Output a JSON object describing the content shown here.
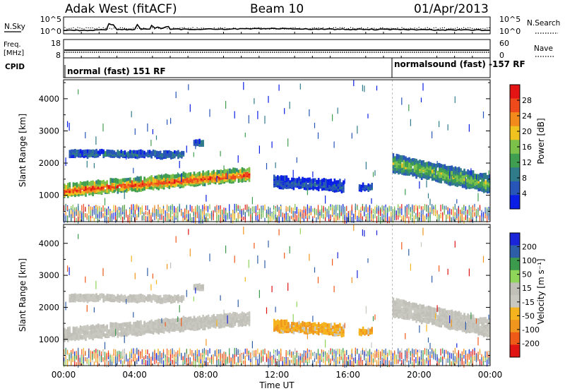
{
  "header": {
    "station": "Adak West (fitACF)",
    "beam": "Beam 10",
    "date": "01/Apr/2013"
  },
  "noise_panel": {
    "left_label": "N.Sky",
    "right_label": "N.Search",
    "ticks": [
      "10^5",
      "10^0"
    ]
  },
  "freq_panel": {
    "left_label_1": "Freq.",
    "left_label_2": "[MHz]",
    "left_ticks": [
      "18",
      "8"
    ],
    "right_label": "Nave",
    "right_ticks": [
      "60",
      "0"
    ]
  },
  "cpid_panel": {
    "label": "CPID",
    "program_1": "normal (fast) 151 RF",
    "program_2": "normalsound (fast) -157 RF"
  },
  "power_panel": {
    "ylabel": "Slant Range [km]",
    "yticks": [
      "4000",
      "3000",
      "2000",
      "1000"
    ],
    "cbar_label": "Power [dB]",
    "cbar_ticks": [
      "28",
      "24",
      "20",
      "16",
      "12",
      "8",
      "4"
    ]
  },
  "velocity_panel": {
    "ylabel": "Slant Range [km]",
    "yticks": [
      "4000",
      "3000",
      "2000",
      "1000"
    ],
    "cbar_label": "Velocity [m s⁻¹]",
    "cbar_ticks": [
      "200",
      "100",
      "50",
      "15",
      "-15",
      "-50",
      "-100",
      "-200"
    ]
  },
  "xaxis": {
    "ticks": [
      "00:00",
      "04:00",
      "08:00",
      "12:00",
      "16:00",
      "20:00",
      "00:00"
    ],
    "label": "Time UT"
  },
  "colors": {
    "power_scale": [
      "#0a1ee6",
      "#2855b8",
      "#2f7b8a",
      "#3f9e4f",
      "#7cc24a",
      "#f0c21f",
      "#f28a1c",
      "#ee4a1b",
      "#e41414"
    ],
    "velocity_scale": [
      "#e11414",
      "#f05a18",
      "#f0961e",
      "#f5b41e",
      "#c8c8c0",
      "#c0c0b8",
      "#8fd55a",
      "#3b9a4c",
      "#2f5ea8",
      "#1a24d8"
    ]
  },
  "chart_data": {
    "type": "heatmap",
    "x_unit": "hours UT",
    "y_unit": "slant range km",
    "xlim": [
      0,
      24
    ],
    "ylim": [
      180,
      4590
    ],
    "power_clim": [
      0,
      32
    ],
    "velocity_clim": [
      -250,
      250
    ],
    "cpid_change_hour": 18.5,
    "echo_regions": [
      {
        "name": "main_e_region",
        "t0": 0.0,
        "t1": 10.5,
        "r_start": 1150,
        "r_end": 1650,
        "thickness": 360,
        "power": 24,
        "velocity": 0
      },
      {
        "name": "upper_band",
        "t0": 0.3,
        "t1": 6.8,
        "r_start": 2300,
        "r_end": 2260,
        "thickness": 170,
        "power": 7,
        "velocity": 0
      },
      {
        "name": "upper_patch",
        "t0": 7.3,
        "t1": 7.9,
        "r_start": 2620,
        "r_end": 2620,
        "thickness": 120,
        "power": 8,
        "velocity": 0
      },
      {
        "name": "midday_patch",
        "t0": 11.8,
        "t1": 15.8,
        "r_start": 1420,
        "r_end": 1280,
        "thickness": 300,
        "power": 5,
        "velocity": -40
      },
      {
        "name": "afternoon_patch",
        "t0": 16.6,
        "t1": 17.4,
        "r_start": 1250,
        "r_end": 1250,
        "thickness": 140,
        "power": 6,
        "velocity": -40
      },
      {
        "name": "evening_region",
        "t0": 18.5,
        "t1": 24.0,
        "r_start": 2000,
        "r_end": 1350,
        "thickness": 500,
        "power": 14,
        "velocity": 0
      }
    ],
    "noise_series": [
      {
        "name": "N.Sky",
        "points": [
          [
            0.0,
            1.2
          ],
          [
            2.4,
            1.4
          ],
          [
            2.55,
            3.6
          ],
          [
            2.8,
            3.2
          ],
          [
            3.0,
            1.5
          ],
          [
            4.0,
            1.6
          ],
          [
            4.15,
            3.3
          ],
          [
            4.35,
            1.6
          ],
          [
            4.85,
            1.7
          ],
          [
            4.95,
            3.0
          ],
          [
            5.15,
            2.0
          ],
          [
            5.3,
            2.4
          ],
          [
            5.5,
            1.9
          ],
          [
            5.9,
            2.6
          ],
          [
            6.0,
            1.6
          ],
          [
            8.0,
            1.7
          ],
          [
            12.0,
            1.8
          ],
          [
            16.0,
            1.6
          ],
          [
            20.0,
            1.5
          ],
          [
            24.0,
            1.3
          ]
        ]
      }
    ],
    "freq_series": [
      {
        "name": "Freq.",
        "points": [
          [
            0,
            10.5
          ],
          [
            24,
            10.5
          ]
        ]
      }
    ]
  }
}
